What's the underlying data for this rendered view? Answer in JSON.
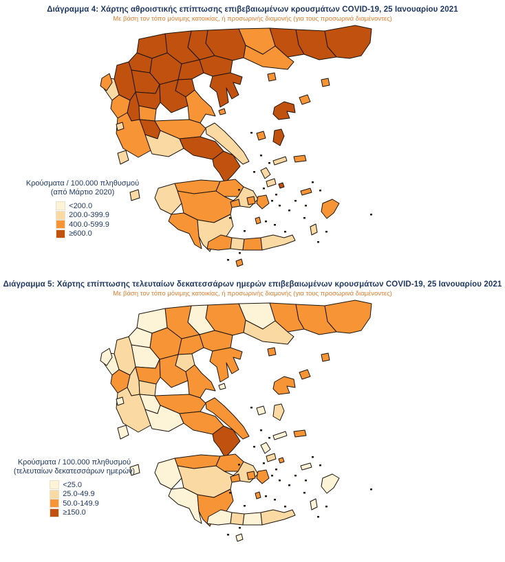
{
  "colors": {
    "title": "#1F3864",
    "subtitle": "#E07C2E",
    "legend_text": "#1F3864",
    "region_border": "#1A140C",
    "background": "#FFFFFF"
  },
  "chart_data": [
    {
      "type": "choropleth",
      "title": "Διάγραμμα 4: Χάρτης αθροιστικής επίπτωσης επιβεβαιωμένων κρουσμάτων COVID-19, 25 Ιανουαρίου 2021",
      "subtitle": "Με βάση τον τόπο μόνιμης κατοικίας, ή προσωρινής διαμονής (για τους προσωρινά διαμένοντες)",
      "legend_title": "Κρούσματα / 100.000 πληθυσμού",
      "legend_subtitle": "(από Μάρτιο 2020)",
      "legend_position": "left-middle",
      "bins": [
        {
          "label": "<200.0",
          "color": "#FDF4D8"
        },
        {
          "label": "200.0-399.9",
          "color": "#FBD9A2"
        },
        {
          "label": "400.0-599.9",
          "color": "#F79435"
        },
        {
          "label": "≥600.0",
          "color": "#C1510F"
        }
      ],
      "regions": {
        "evros": 3,
        "rodopi": 3,
        "xanthi": 3,
        "drama": 2,
        "kavala": 2,
        "serres": 3,
        "kilkis": 3,
        "pella": 3,
        "florina": 3,
        "kastoria": 3,
        "kozani": 3,
        "grevena": 3,
        "imathia": 3,
        "thessaloniki": 3,
        "chalkidiki": 3,
        "pieria": 3,
        "ioannina": 3,
        "thesprotia": 1,
        "preveza": 2,
        "arta": 3,
        "trikala": 3,
        "larissa": 3,
        "karditsa": 2,
        "magnesia": 2,
        "skopelos": 2,
        "evrytania": 3,
        "aetolia": 2,
        "fthiotida": 2,
        "fokida": 1,
        "viotia": 3,
        "attica": 3,
        "euboea": 1,
        "skyros": 2,
        "achaia": 2,
        "corinthia": 2,
        "argolida": 1,
        "ilia": 1,
        "arcadia": 2,
        "messinia": 2,
        "laconia": 1,
        "corfu": 2,
        "lefkada": 1,
        "kefalonia": 1,
        "zakynthos": 1,
        "kythira": 2,
        "chania": 2,
        "rethymno": 1,
        "heraklion": 2,
        "lasithi": 1,
        "thasos": 2,
        "samothrace": 2,
        "limnos": 2,
        "lesbos": 3,
        "chios": 3,
        "samos": 2,
        "ikaria": 1,
        "andros": 1,
        "tinos": 1,
        "mykonos": 3,
        "naxos": 2,
        "paros": 2,
        "milos": 2,
        "santorini": 2,
        "kos": 2,
        "rhodes": 2,
        "karpathos": 1
      }
    },
    {
      "type": "choropleth",
      "title": "Διάγραμμα 5: Χάρτης επίπτωσης τελευταίων δεκατεσσάρων ημερών επιβεβαιωμένων κρουσμάτων COVID-19, 25 Ιανουαρίου 2021",
      "subtitle": "Με βάση τον τόπο μόνιμης κατοικίας, ή προσωρινής διαμονής (για τους προσωρινά διαμένοντες)",
      "legend_title": "Κρούσματα / 100.000 πληθυσμού",
      "legend_subtitle": "(τελευταίων δεκατεσσάρων ημερών)",
      "legend_position": "left-middle",
      "bins": [
        {
          "label": "<25.0",
          "color": "#FDF4D8"
        },
        {
          "label": "25.0-49.9",
          "color": "#FBD9A2"
        },
        {
          "label": "50.0-149.9",
          "color": "#F79435"
        },
        {
          "label": "≥150.0",
          "color": "#C1510F"
        }
      ],
      "regions": {
        "evros": 2,
        "rodopi": 2,
        "xanthi": 2,
        "drama": 0,
        "kavala": 1,
        "serres": 2,
        "kilkis": 0,
        "pella": 2,
        "florina": 0,
        "kastoria": 0,
        "kozani": 2,
        "grevena": 0,
        "imathia": 2,
        "thessaloniki": 2,
        "chalkidiki": 2,
        "pieria": 1,
        "ioannina": 1,
        "thesprotia": 0,
        "preveza": 2,
        "arta": 1,
        "trikala": 2,
        "larissa": 2,
        "karditsa": 1,
        "magnesia": 2,
        "skopelos": 0,
        "evrytania": 0,
        "aetolia": 1,
        "fthiotida": 2,
        "fokida": 0,
        "viotia": 2,
        "attica": 3,
        "euboea": 2,
        "skyros": 0,
        "achaia": 2,
        "corinthia": 2,
        "argolida": 1,
        "ilia": 0,
        "arcadia": 1,
        "messinia": 0,
        "laconia": 2,
        "corfu": 0,
        "lefkada": 0,
        "kefalonia": 0,
        "zakynthos": 0,
        "kythira": 0,
        "chania": 0,
        "rethymno": 1,
        "heraklion": 0,
        "lasithi": 1,
        "thasos": 2,
        "samothrace": 2,
        "limnos": 2,
        "lesbos": 2,
        "chios": 1,
        "samos": 2,
        "ikaria": 0,
        "andros": 0,
        "tinos": 1,
        "mykonos": 2,
        "naxos": 2,
        "paros": 2,
        "milos": 2,
        "santorini": 2,
        "kos": 0,
        "rhodes": 0,
        "karpathos": 0
      }
    }
  ]
}
